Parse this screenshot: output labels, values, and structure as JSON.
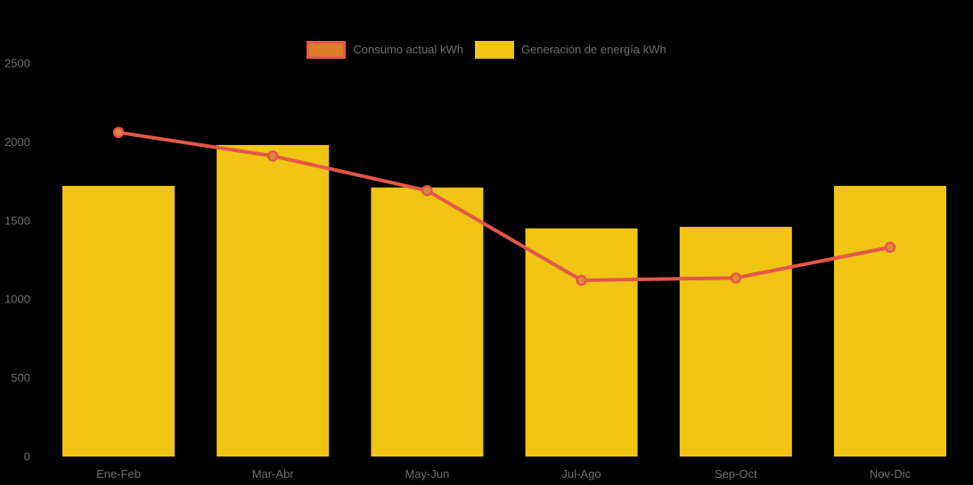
{
  "chart_data": {
    "type": "bar",
    "title": "",
    "categories": [
      "Ene-Feb",
      "Mar-Abr",
      "May-Jun",
      "Jul-Ago",
      "Sep-Oct",
      "Nov-Dic"
    ],
    "series": [
      {
        "name": "Consumo actual kWh",
        "type": "line",
        "color": "#E4564A",
        "marker_fill": "#E0883A",
        "values": [
          2060,
          1910,
          1690,
          1120,
          1135,
          1330
        ]
      },
      {
        "name": "Generación de energía kWh",
        "type": "bar",
        "color": "#F0C514",
        "values": [
          1720,
          1980,
          1710,
          1450,
          1460,
          1720
        ]
      }
    ],
    "xlabel": "",
    "ylabel": "",
    "ylim": [
      0,
      2500
    ],
    "yticks": [
      "0",
      "500",
      "1000",
      "1500",
      "2000",
      "2500"
    ],
    "grid": false,
    "legend_position": "top",
    "background_color": "#000000",
    "axis_text_color": "#6E6E6E",
    "legend_text_color": "#6F6F6F",
    "legend_swatch_consumo_fill": "#DC7E28",
    "legend_swatch_consumo_border": "#E8584A"
  }
}
